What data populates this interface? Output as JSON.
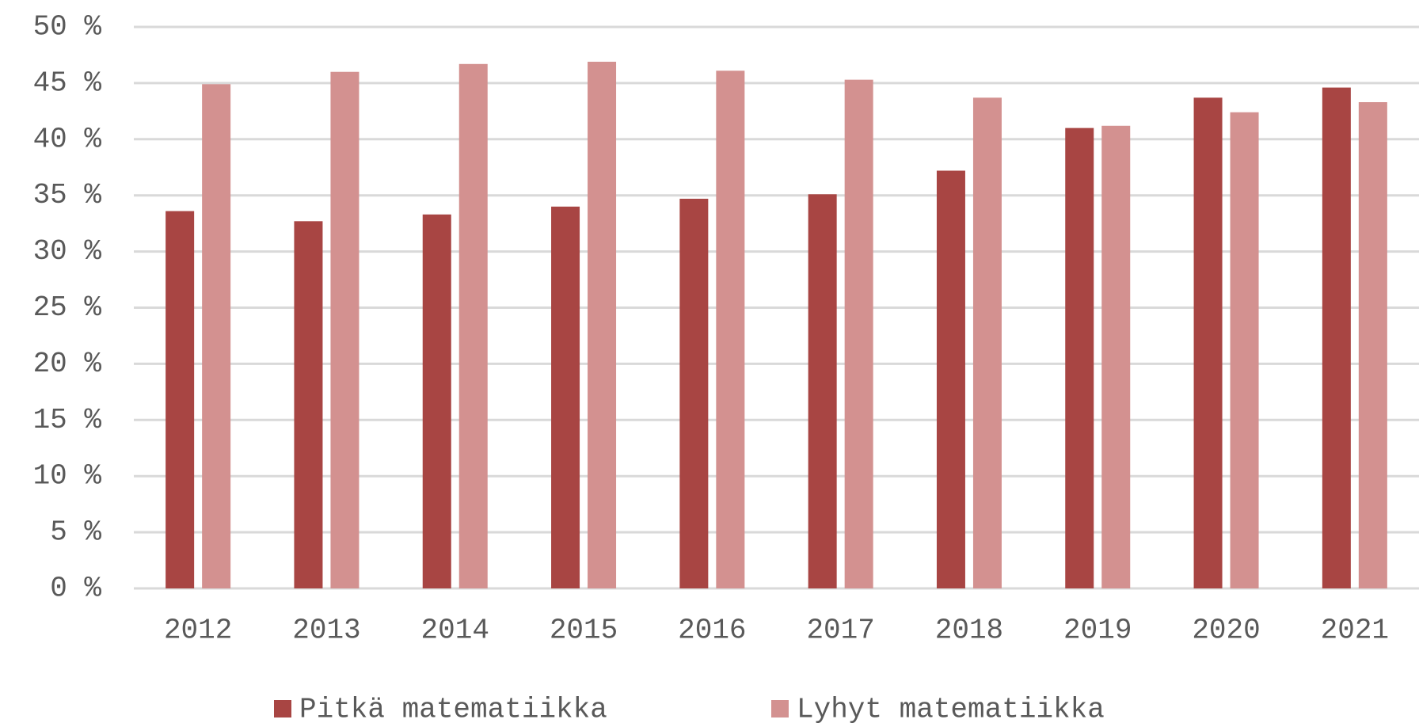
{
  "chart_data": {
    "type": "bar",
    "categories": [
      "2012",
      "2013",
      "2014",
      "2015",
      "2016",
      "2017",
      "2018",
      "2019",
      "2020",
      "2021"
    ],
    "series": [
      {
        "name": "Pitkä matematiikka",
        "color": "#a84543",
        "values": [
          33.6,
          32.7,
          33.3,
          34.0,
          34.7,
          35.1,
          37.2,
          41.0,
          43.7,
          44.6
        ]
      },
      {
        "name": "Lyhyt matematiikka",
        "color": "#d39190",
        "values": [
          44.9,
          46.0,
          46.7,
          46.9,
          46.1,
          45.3,
          43.7,
          41.2,
          42.4,
          43.3
        ]
      }
    ],
    "ylim": [
      0,
      50
    ],
    "yticks": [
      {
        "value": 0,
        "label": "0 %"
      },
      {
        "value": 5,
        "label": "5 %"
      },
      {
        "value": 10,
        "label": "10 %"
      },
      {
        "value": 15,
        "label": "15 %"
      },
      {
        "value": 20,
        "label": "20 %"
      },
      {
        "value": 25,
        "label": "25 %"
      },
      {
        "value": 30,
        "label": "30 %"
      },
      {
        "value": 35,
        "label": "35 %"
      },
      {
        "value": 40,
        "label": "40 %"
      },
      {
        "value": 45,
        "label": "45 %"
      },
      {
        "value": 50,
        "label": "50 %"
      }
    ],
    "grid": true,
    "legend": "bottom"
  }
}
